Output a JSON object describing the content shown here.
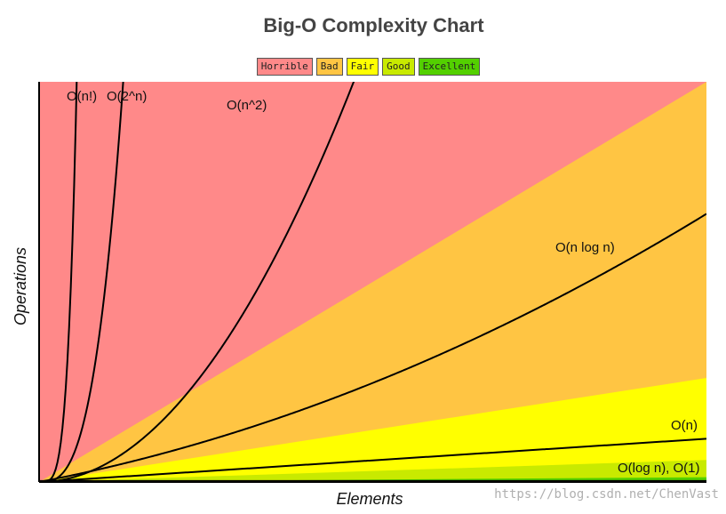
{
  "chart_data": {
    "type": "line",
    "title": "Big-O Complexity Chart",
    "xlabel": "Elements",
    "ylabel": "Operations",
    "legend": [
      {
        "label": "Horrible",
        "color": "#ff8989"
      },
      {
        "label": "Bad",
        "color": "#ffc543"
      },
      {
        "label": "Fair",
        "color": "#ffff00"
      },
      {
        "label": "Good",
        "color": "#c8ea00"
      },
      {
        "label": "Excellent",
        "color": "#53d000"
      }
    ],
    "legend_placement": "top-center",
    "grid": false,
    "xlim": [
      0,
      100
    ],
    "ylim": [
      0,
      1000
    ],
    "regions": [
      {
        "name": "Horrible",
        "color": "#ff8989",
        "upper": "top",
        "lower": "Bad"
      },
      {
        "name": "Bad",
        "color": "#ffc543",
        "boundary_slope": 10
      },
      {
        "name": "Fair",
        "color": "#ffff00",
        "boundary_slope": 2.6
      },
      {
        "name": "Good",
        "color": "#c8ea00",
        "boundary_slope": 0.55
      },
      {
        "name": "Excellent",
        "color": "#53d000",
        "boundary_slope": 0.12
      }
    ],
    "series": [
      {
        "name": "O(n!)",
        "label": "O(n!)",
        "function": "factorial"
      },
      {
        "name": "O(2^n)",
        "label": "O(2^n)",
        "function": "exp2"
      },
      {
        "name": "O(n^2)",
        "label": "O(n^2)",
        "function": "square"
      },
      {
        "name": "O(n log n)",
        "label": "O(n log n)",
        "function": "nlogn"
      },
      {
        "name": "O(n)",
        "label": "O(n)",
        "function": "linear"
      },
      {
        "name": "O(log n), O(1)",
        "label": "O(log n), O(1)",
        "function": "constant"
      }
    ]
  },
  "watermark": "https://blog.csdn.net/ChenVast"
}
